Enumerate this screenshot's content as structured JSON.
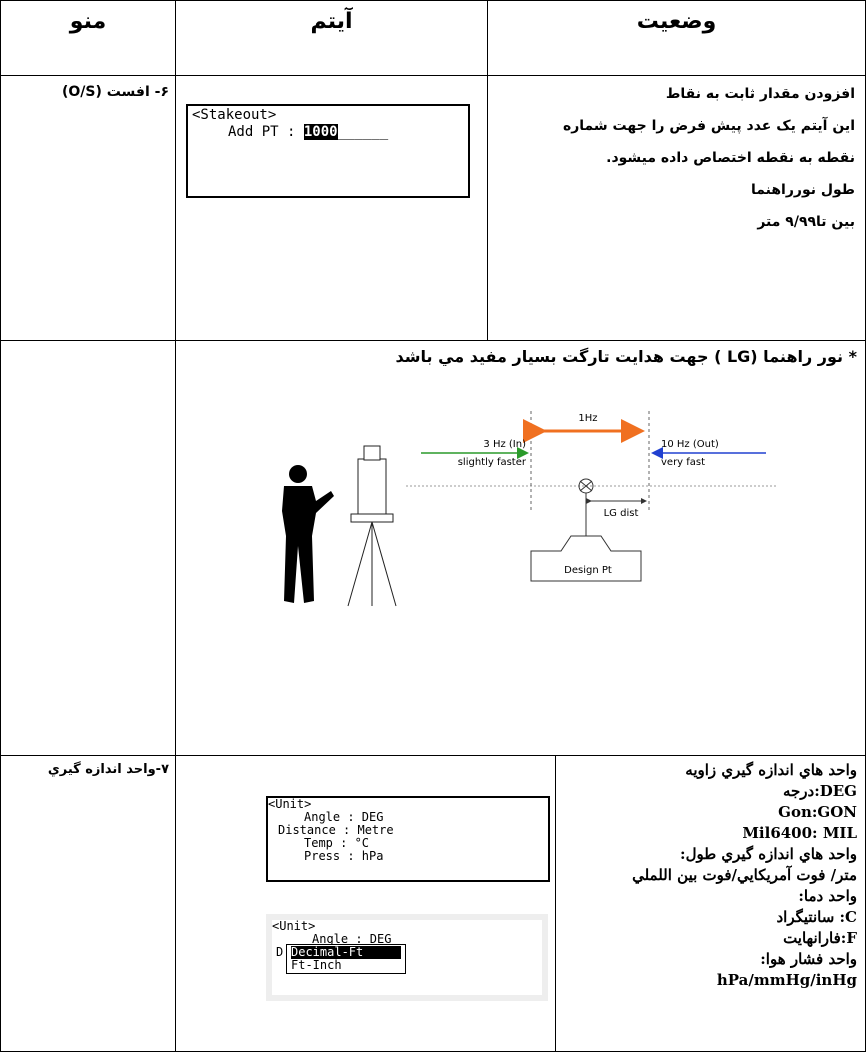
{
  "header": {
    "menu": "منو",
    "item": "آیتم",
    "status": "وضعیت"
  },
  "row_offset": {
    "menu": "۶- افست (O/S)",
    "screen": {
      "title": "<Stakeout>",
      "label": "Add PT :",
      "value": "1000"
    },
    "status": [
      "افزودن مقدار ثابت به نقاط",
      "این آیتم یک عدد پیش فرض را جهت شماره",
      "نقطه به نقطه اختصاص داده میشود.",
      "طول نورراهنما",
      "بین تا۹/۹۹ متر"
    ]
  },
  "row_guide_light": {
    "note": "* نور راهنما (LG ) جهت هدايت تارگت بسيار مفيد مي باشد",
    "diagram": {
      "center_rate": "1Hz",
      "in_rate": "3 Hz (In)",
      "in_speed": "slightly faster",
      "out_rate": "10 Hz (Out)",
      "out_speed": "very fast",
      "lg_dist": "LG dist",
      "design_pt": "Design Pt"
    }
  },
  "row_units": {
    "menu": "۷-واحد اندازه گيري",
    "screen1": {
      "title": "<Unit>",
      "lines": [
        "Angle : DEG",
        "Distance : Metre",
        "Temp : °C",
        "Press : hPa"
      ]
    },
    "screen2": {
      "title": "<Unit>",
      "line": "Angle : DEG",
      "cut": "D",
      "options": [
        "Decimal-Ft",
        "Ft-Inch"
      ]
    },
    "status": [
      "واحد هاي اندازه گيري زاويه",
      "DEG:درجه",
      "Gon:GON",
      "Mil6400: MIL",
      "واحد هاي اندازه گيري طول:",
      "متر/ فوت آمريكايي/فوت بين اللملي",
      "واحد دما:",
      "C: سانتيگراد",
      "F:فارانهايت",
      "واحد فشار هوا:",
      "hPa/mmHg/inHg"
    ]
  }
}
